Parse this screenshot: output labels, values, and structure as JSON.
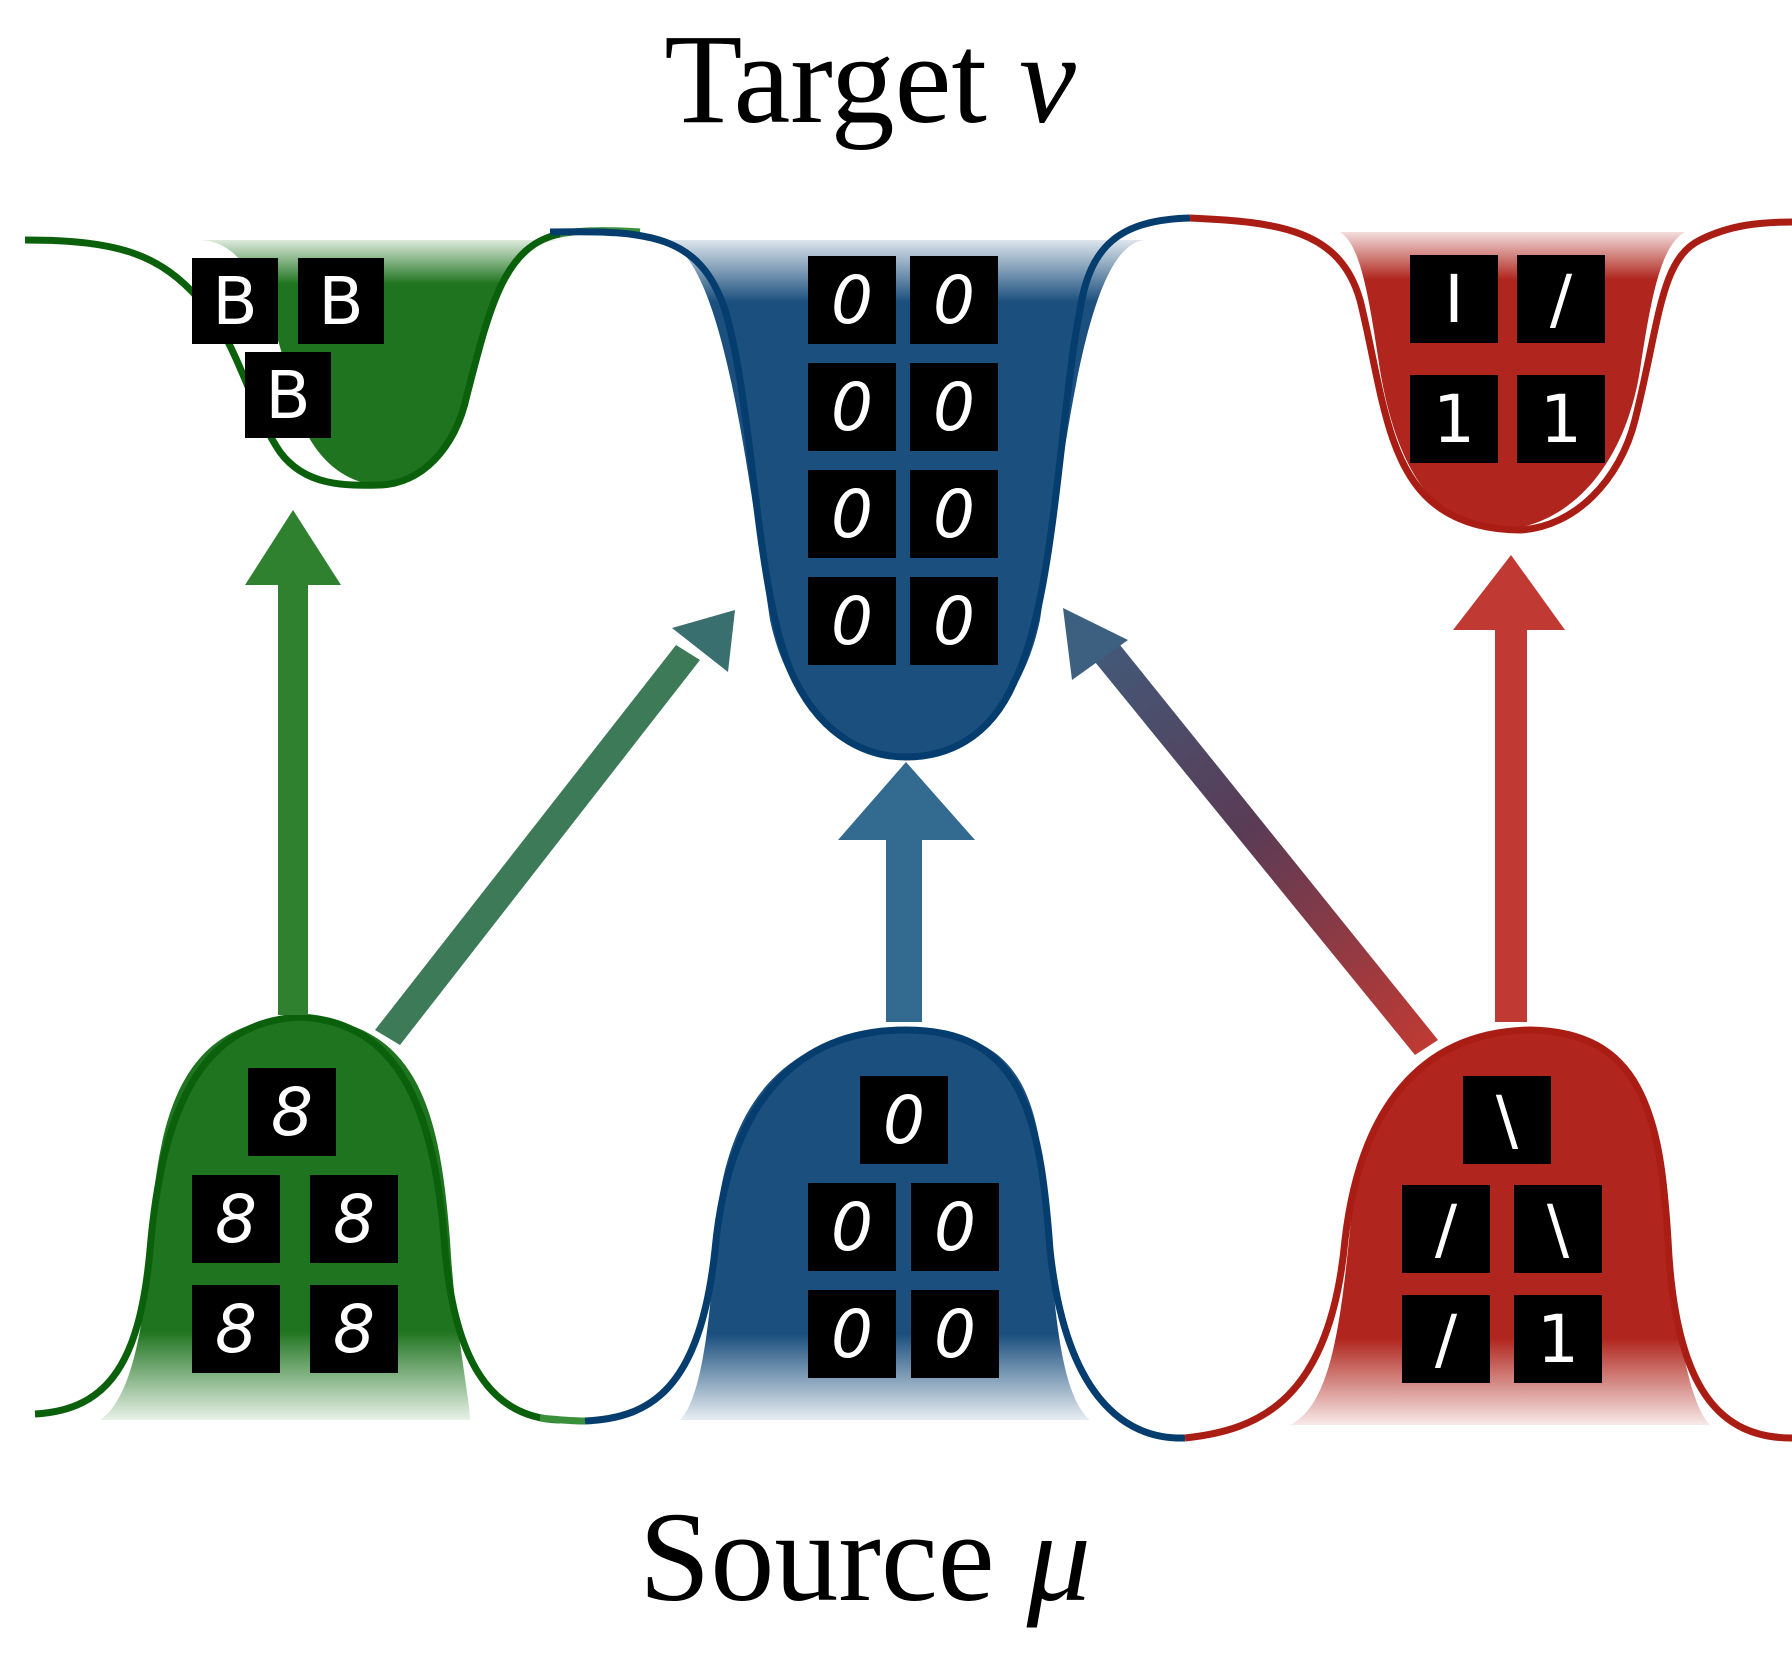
{
  "target_label": {
    "text": "Target",
    "symbol": "ν"
  },
  "source_label": {
    "text": "Source",
    "symbol": "μ"
  },
  "colors": {
    "green_fill": "#1f741f",
    "green_stroke": "#0b610b",
    "blue_fill": "#1b4f7e",
    "blue_stroke": "#053d6e",
    "red_fill": "#b0251d",
    "red_stroke": "#a91d14",
    "green_arrow": "#2f8130",
    "blue_arrow": "#336a90",
    "red_arrow": "#c03a33",
    "mixed_arrow_end": "#3d6080"
  },
  "clusters": {
    "target_green": {
      "digits": [
        "B",
        "B",
        "B"
      ]
    },
    "target_blue": {
      "digits": [
        "0",
        "0",
        "0",
        "0",
        "0",
        "0",
        "0",
        "0"
      ]
    },
    "target_red": {
      "digits": [
        "I",
        "/",
        "1",
        "1"
      ]
    },
    "source_green": {
      "digits": [
        "8",
        "8",
        "8",
        "8",
        "8"
      ]
    },
    "source_blue": {
      "digits": [
        "0",
        "0",
        "0",
        "0",
        "0"
      ]
    },
    "source_red": {
      "digits": [
        "\\",
        "/",
        "\\",
        "/",
        "1"
      ]
    }
  }
}
